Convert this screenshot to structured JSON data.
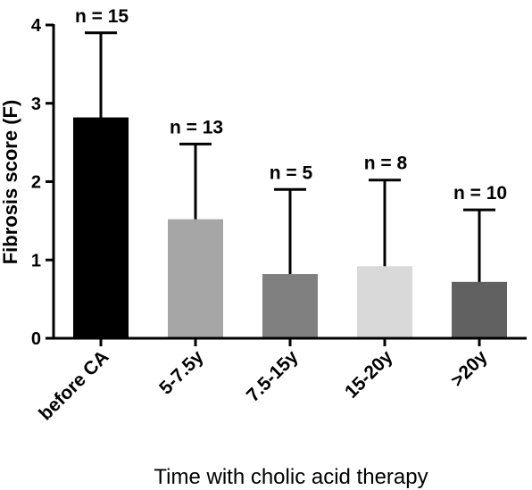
{
  "chart_data": {
    "type": "bar",
    "title": "",
    "xlabel": "Time with cholic acid therapy",
    "ylabel": "Fibrosis score (F)",
    "ylim": [
      0,
      4
    ],
    "yticks": [
      0,
      1,
      2,
      3,
      4
    ],
    "grid": false,
    "categories": [
      "before CA",
      "5-7.5y",
      "7.5-15y",
      "15-20y",
      ">20y"
    ],
    "values": [
      2.82,
      1.52,
      0.82,
      0.92,
      0.72
    ],
    "error_upper": [
      1.08,
      0.96,
      1.08,
      1.1,
      0.92
    ],
    "annotations": [
      "n = 15",
      "n = 13",
      "n = 5",
      "n = 8",
      "n = 10"
    ],
    "colors": [
      "#000000",
      "#a6a6a6",
      "#808080",
      "#d9d9d9",
      "#616161"
    ]
  }
}
